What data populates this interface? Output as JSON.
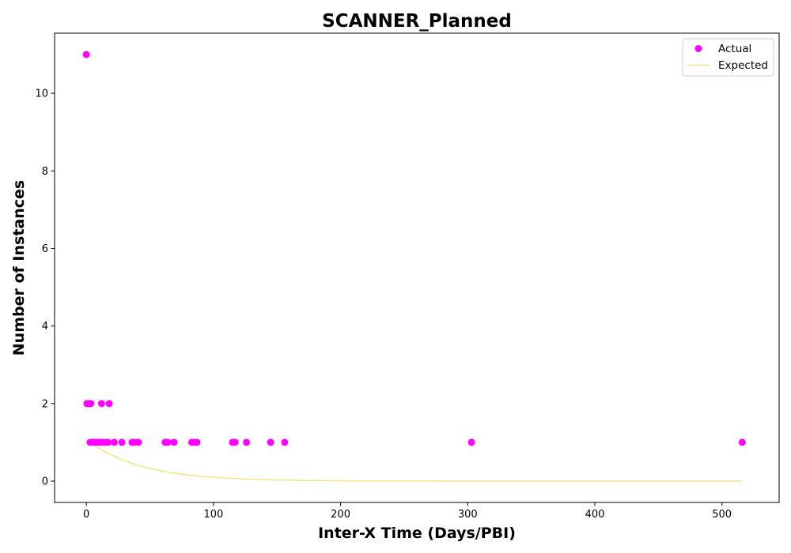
{
  "chart_data": {
    "type": "scatter",
    "title": "SCANNER_Planned",
    "xlabel": "Inter-X Time (Days/PBI)",
    "ylabel": "Number of Instances",
    "xlim": [
      -25,
      545
    ],
    "ylim": [
      -0.55,
      11.55
    ],
    "x_ticks": [
      0,
      100,
      200,
      300,
      400,
      500
    ],
    "y_ticks": [
      0,
      2,
      4,
      6,
      8,
      10
    ],
    "grid": false,
    "legend": {
      "placement": "top-right",
      "entries": [
        "Actual",
        "Expected"
      ]
    },
    "colors": {
      "actual": "#ff00ff",
      "expected": "#f0e68c"
    },
    "series": [
      {
        "name": "Actual",
        "kind": "scatter",
        "points": [
          [
            0,
            11
          ],
          [
            0.5,
            2
          ],
          [
            2,
            2
          ],
          [
            3.5,
            2
          ],
          [
            12,
            2
          ],
          [
            18,
            2
          ],
          [
            3,
            1
          ],
          [
            5,
            1
          ],
          [
            7,
            1
          ],
          [
            9,
            1
          ],
          [
            11,
            1
          ],
          [
            13,
            1
          ],
          [
            15,
            1
          ],
          [
            17,
            1
          ],
          [
            22,
            1
          ],
          [
            28,
            1
          ],
          [
            36,
            1
          ],
          [
            38,
            1
          ],
          [
            41,
            1
          ],
          [
            62,
            1
          ],
          [
            64,
            1
          ],
          [
            69,
            1
          ],
          [
            83,
            1
          ],
          [
            85,
            1
          ],
          [
            87,
            1
          ],
          [
            115,
            1
          ],
          [
            117,
            1
          ],
          [
            126,
            1
          ],
          [
            145,
            1
          ],
          [
            156,
            1
          ],
          [
            303,
            1
          ],
          [
            516,
            1
          ]
        ]
      },
      {
        "name": "Expected",
        "kind": "line",
        "function": "1.08*exp(-x/42)",
        "x_range": [
          0,
          516
        ]
      }
    ]
  }
}
